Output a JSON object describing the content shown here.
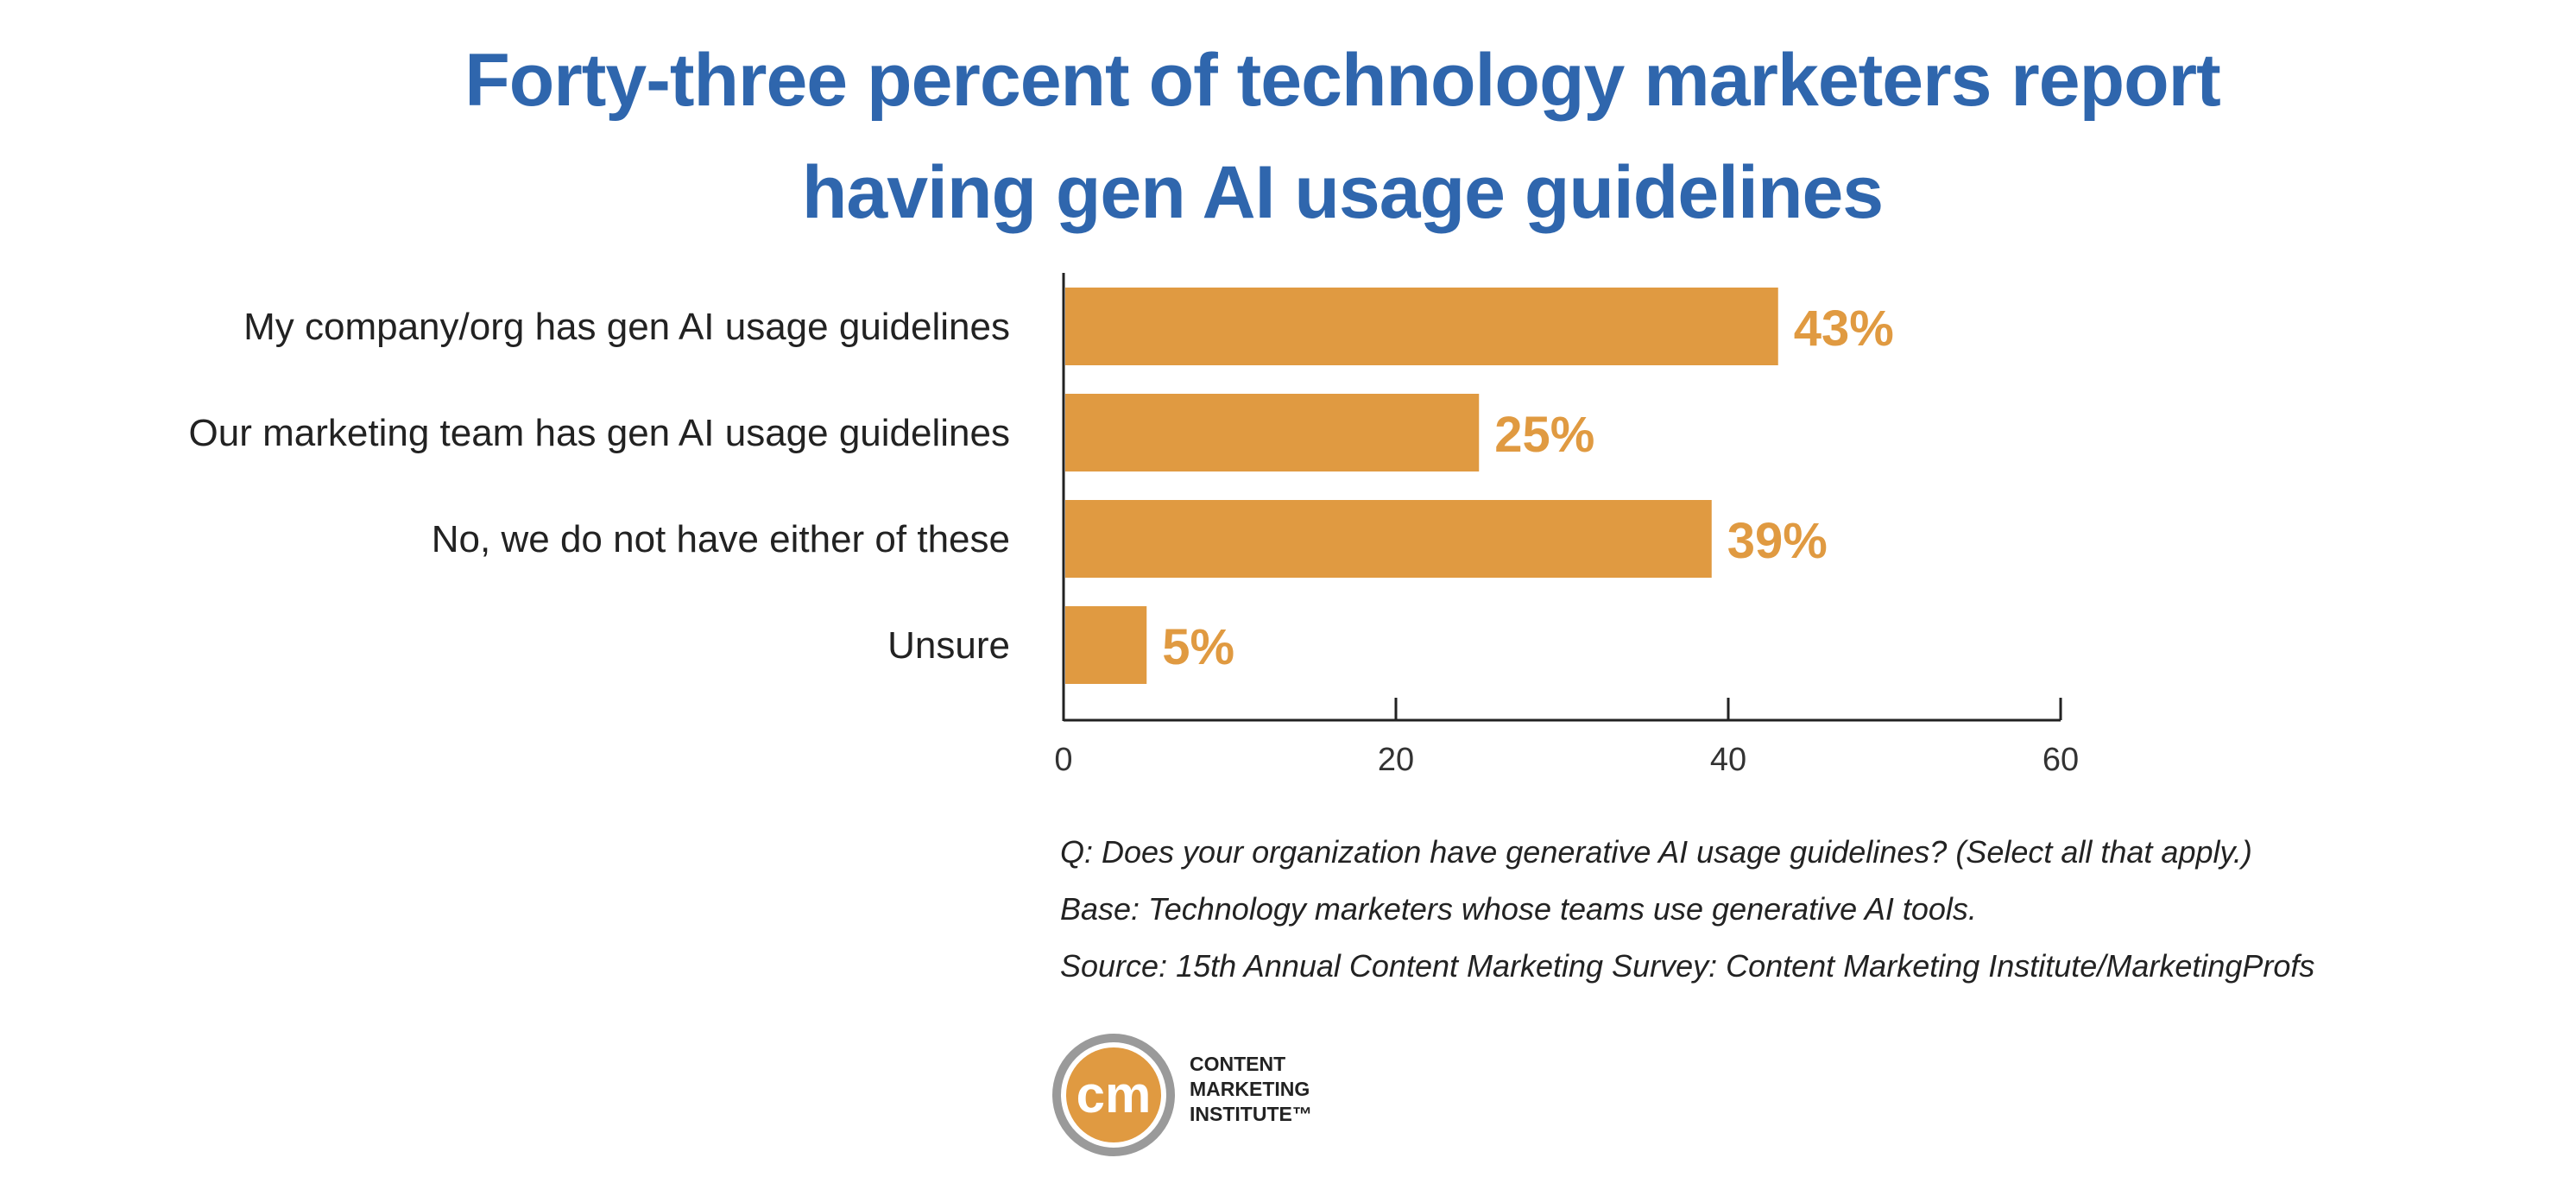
{
  "title": {
    "line1": "Forty-three percent of technology marketers report",
    "line2": "having gen AI usage guidelines"
  },
  "chart_data": {
    "type": "bar",
    "orientation": "horizontal",
    "categories": [
      "My company/org has gen AI usage guidelines",
      "Our marketing team has gen AI usage guidelines",
      "No, we do not have either of these",
      "Unsure"
    ],
    "values": [
      43,
      25,
      39,
      5
    ],
    "data_labels": [
      "43%",
      "25%",
      "39%",
      "5%"
    ],
    "xlim": [
      0,
      60
    ],
    "xticks": [
      0,
      20,
      40,
      60
    ],
    "grid": false,
    "bar_color": "#e09a41",
    "label_color": "#e09a41"
  },
  "notes": {
    "question": "Q: Does your organization have generative AI usage guidelines? (Select all that apply.)",
    "base": "Base: Technology marketers whose teams use generative AI tools.",
    "source": "Source: 15th Annual Content Marketing Survey: Content Marketing Institute/MarketingProfs"
  },
  "logo": {
    "mark": "cm",
    "line1": "CONTENT",
    "line2": "MARKETING",
    "line3": "INSTITUTE™",
    "ring_color": "#9a9a9a",
    "fill_color": "#e09a41"
  }
}
